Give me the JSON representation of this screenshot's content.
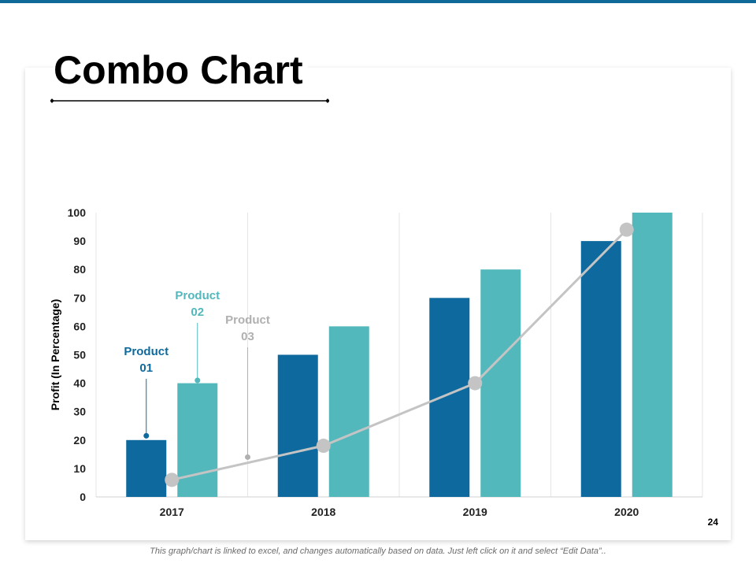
{
  "slide": {
    "title": "Combo Chart",
    "page_number": "24",
    "footnote": "This graph/chart is linked to excel, and changes automatically based on data. Just left click on it and select “Edit Data”.."
  },
  "colors": {
    "accent": "#0f6a99",
    "product_01": "#0e6a9e",
    "product_02": "#52b8bb",
    "product_03": "#c4c4c4",
    "product_03_label": "#b0b0b0",
    "gridline": "#e6e6e6",
    "axis": "#d0d0d0"
  },
  "chart_data": {
    "type": "bar",
    "combo": true,
    "title": "",
    "xlabel": "",
    "ylabel": "Profit (In Percentage)",
    "ylim": [
      0,
      100
    ],
    "yticks": [
      0,
      10,
      20,
      30,
      40,
      50,
      60,
      70,
      80,
      90,
      100
    ],
    "categories": [
      "2017",
      "2018",
      "2019",
      "2020"
    ],
    "series": [
      {
        "name": "Product 01",
        "label_lines": [
          "Product",
          "01"
        ],
        "type": "bar",
        "values": [
          20,
          50,
          70,
          90
        ]
      },
      {
        "name": "Product 02",
        "label_lines": [
          "Product",
          "02"
        ],
        "type": "bar",
        "values": [
          40,
          60,
          80,
          100
        ]
      },
      {
        "name": "Product 03",
        "label_lines": [
          "Product",
          "03"
        ],
        "type": "line",
        "values": [
          6,
          18,
          40,
          94
        ]
      }
    ],
    "grid": {
      "vertical_category_dividers": true
    }
  }
}
